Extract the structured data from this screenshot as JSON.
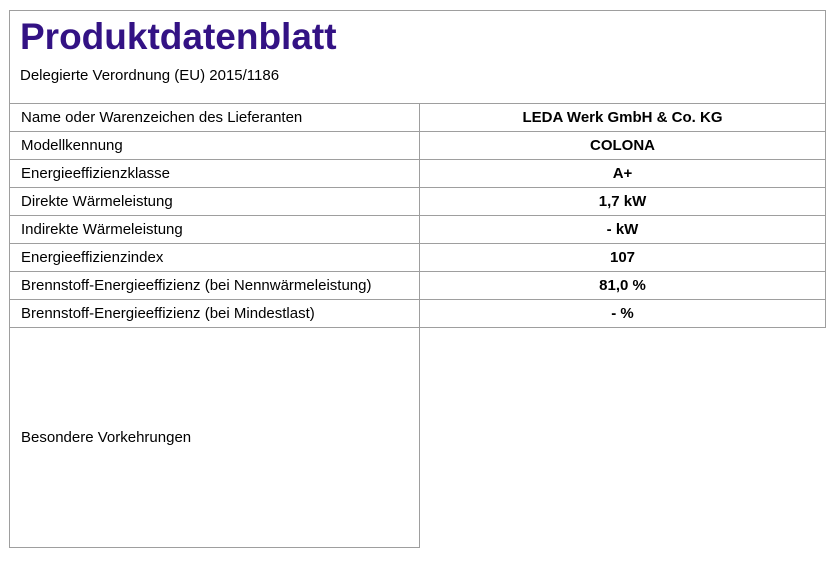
{
  "document": {
    "title": "Produktdatenblatt",
    "subtitle": "Delegierte Verordnung (EU) 2015/1186",
    "title_color": "#331284",
    "border_color": "#9e9e9e"
  },
  "table": {
    "rows": [
      {
        "label": "Name oder Warenzeichen des Lieferanten",
        "value": "LEDA Werk GmbH & Co. KG"
      },
      {
        "label": "Modellkennung",
        "value": "COLONA"
      },
      {
        "label": "Energieeffizienzklasse",
        "value": "A+"
      },
      {
        "label": "Direkte Wärmeleistung",
        "value": "1,7 kW"
      },
      {
        "label": "Indirekte Wärmeleistung",
        "value": "- kW"
      },
      {
        "label": "Energieeffizienzindex",
        "value": "107"
      },
      {
        "label": "Brennstoff-Energieeffizienz (bei Nennwärmeleistung)",
        "value": "81,0 %"
      },
      {
        "label": "Brennstoff-Energieeffizienz (bei Mindestlast)",
        "value": "- %"
      }
    ],
    "footer_row": {
      "label": "Besondere Vorkehrungen",
      "value": ""
    }
  }
}
